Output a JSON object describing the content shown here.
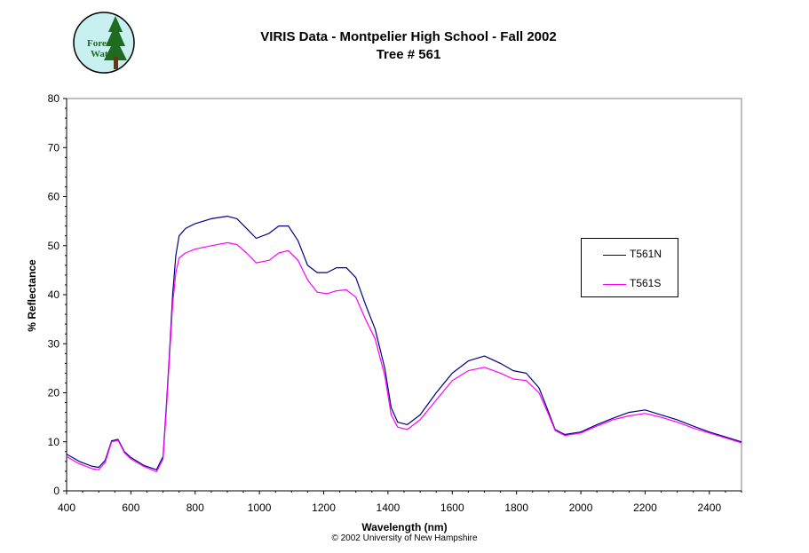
{
  "logo": {
    "text_line1": "Forest",
    "text_line2": "Watch"
  },
  "chart_data": {
    "type": "line",
    "title": "VIRIS Data - Montpelier High School - Fall 2002",
    "subtitle": "Tree # 561",
    "xlabel": "Wavelength (nm)",
    "ylabel": "% Reflectance",
    "copyright": "© 2002 University of New Hampshire",
    "xlim": [
      400,
      2500
    ],
    "ylim": [
      0,
      80
    ],
    "x_ticks": [
      400,
      600,
      800,
      1000,
      1200,
      1400,
      1600,
      1800,
      2000,
      2200,
      2400
    ],
    "y_ticks": [
      0,
      10,
      20,
      30,
      40,
      50,
      60,
      70,
      80
    ],
    "grid": false,
    "legend_position": "right",
    "series": [
      {
        "name": "T561N",
        "color": "#000080",
        "points": [
          [
            400,
            7.5
          ],
          [
            440,
            6
          ],
          [
            480,
            5
          ],
          [
            500,
            4.8
          ],
          [
            520,
            6.2
          ],
          [
            540,
            10.2
          ],
          [
            560,
            10.5
          ],
          [
            580,
            8
          ],
          [
            600,
            6.8
          ],
          [
            640,
            5.2
          ],
          [
            680,
            4.3
          ],
          [
            700,
            7
          ],
          [
            710,
            17
          ],
          [
            720,
            28
          ],
          [
            730,
            40
          ],
          [
            740,
            48
          ],
          [
            750,
            52
          ],
          [
            770,
            53.5
          ],
          [
            800,
            54.5
          ],
          [
            850,
            55.5
          ],
          [
            900,
            56
          ],
          [
            930,
            55.5
          ],
          [
            960,
            53.5
          ],
          [
            990,
            51.5
          ],
          [
            1030,
            52.5
          ],
          [
            1060,
            54
          ],
          [
            1090,
            54
          ],
          [
            1120,
            51
          ],
          [
            1150,
            46
          ],
          [
            1180,
            44.5
          ],
          [
            1210,
            44.5
          ],
          [
            1240,
            45.5
          ],
          [
            1270,
            45.5
          ],
          [
            1300,
            43.5
          ],
          [
            1330,
            38
          ],
          [
            1360,
            33
          ],
          [
            1390,
            25
          ],
          [
            1410,
            17
          ],
          [
            1430,
            14
          ],
          [
            1460,
            13.5
          ],
          [
            1500,
            15.5
          ],
          [
            1550,
            20
          ],
          [
            1600,
            24
          ],
          [
            1650,
            26.5
          ],
          [
            1700,
            27.5
          ],
          [
            1750,
            26
          ],
          [
            1790,
            24.5
          ],
          [
            1830,
            24
          ],
          [
            1870,
            21
          ],
          [
            1900,
            16
          ],
          [
            1920,
            12.5
          ],
          [
            1950,
            11.5
          ],
          [
            2000,
            12
          ],
          [
            2050,
            13.5
          ],
          [
            2100,
            14.8
          ],
          [
            2150,
            16
          ],
          [
            2200,
            16.5
          ],
          [
            2250,
            15.5
          ],
          [
            2300,
            14.5
          ],
          [
            2350,
            13.2
          ],
          [
            2400,
            12
          ],
          [
            2450,
            11
          ],
          [
            2500,
            10
          ]
        ]
      },
      {
        "name": "T561S",
        "color": "#ff00ff",
        "points": [
          [
            400,
            7
          ],
          [
            440,
            5.5
          ],
          [
            480,
            4.5
          ],
          [
            500,
            4.3
          ],
          [
            520,
            5.8
          ],
          [
            540,
            10
          ],
          [
            560,
            10.3
          ],
          [
            580,
            7.8
          ],
          [
            600,
            6.5
          ],
          [
            640,
            5
          ],
          [
            680,
            3.9
          ],
          [
            700,
            6.5
          ],
          [
            710,
            16
          ],
          [
            720,
            27
          ],
          [
            730,
            38
          ],
          [
            740,
            44.5
          ],
          [
            750,
            47.5
          ],
          [
            770,
            48.5
          ],
          [
            800,
            49.3
          ],
          [
            850,
            50
          ],
          [
            900,
            50.6
          ],
          [
            930,
            50.2
          ],
          [
            960,
            48.5
          ],
          [
            990,
            46.5
          ],
          [
            1030,
            47
          ],
          [
            1060,
            48.5
          ],
          [
            1090,
            49
          ],
          [
            1120,
            47
          ],
          [
            1150,
            43
          ],
          [
            1180,
            40.5
          ],
          [
            1210,
            40.2
          ],
          [
            1240,
            40.8
          ],
          [
            1270,
            41
          ],
          [
            1300,
            39.5
          ],
          [
            1330,
            35
          ],
          [
            1360,
            31
          ],
          [
            1390,
            23.5
          ],
          [
            1410,
            15.5
          ],
          [
            1430,
            13
          ],
          [
            1460,
            12.5
          ],
          [
            1500,
            14.5
          ],
          [
            1550,
            18.5
          ],
          [
            1600,
            22.5
          ],
          [
            1650,
            24.5
          ],
          [
            1700,
            25.2
          ],
          [
            1750,
            24
          ],
          [
            1790,
            22.8
          ],
          [
            1830,
            22.5
          ],
          [
            1870,
            20
          ],
          [
            1900,
            15.5
          ],
          [
            1920,
            12.3
          ],
          [
            1950,
            11.3
          ],
          [
            2000,
            11.8
          ],
          [
            2050,
            13.2
          ],
          [
            2100,
            14.5
          ],
          [
            2150,
            15.3
          ],
          [
            2200,
            15.8
          ],
          [
            2250,
            15
          ],
          [
            2300,
            14
          ],
          [
            2350,
            12.8
          ],
          [
            2400,
            11.8
          ],
          [
            2450,
            10.8
          ],
          [
            2500,
            9.8
          ]
        ]
      }
    ]
  }
}
